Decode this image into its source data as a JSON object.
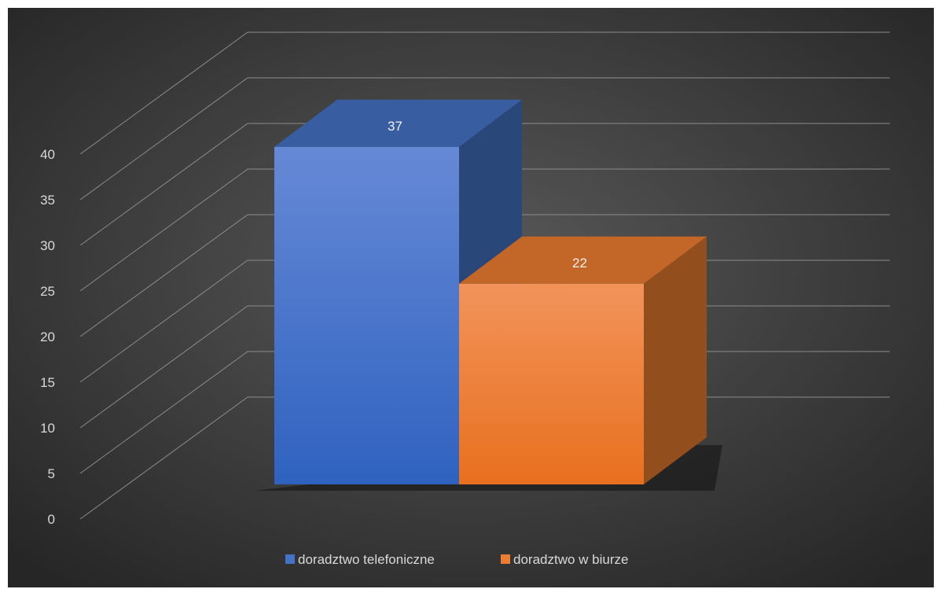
{
  "chart_data": {
    "type": "bar",
    "title": "",
    "xlabel": "",
    "ylabel": "",
    "categories": [
      ""
    ],
    "series": [
      {
        "name": "doradztwo telefoniczne",
        "values": [
          37
        ],
        "color": "#4472c4"
      },
      {
        "name": "doradztwo w biurze",
        "values": [
          22
        ],
        "color": "#ed7d31"
      }
    ],
    "ylim": [
      0,
      40
    ],
    "ytick_step": 5,
    "grid": true,
    "legend": "bottom-center",
    "style": "3d-column",
    "background": "#404040"
  }
}
